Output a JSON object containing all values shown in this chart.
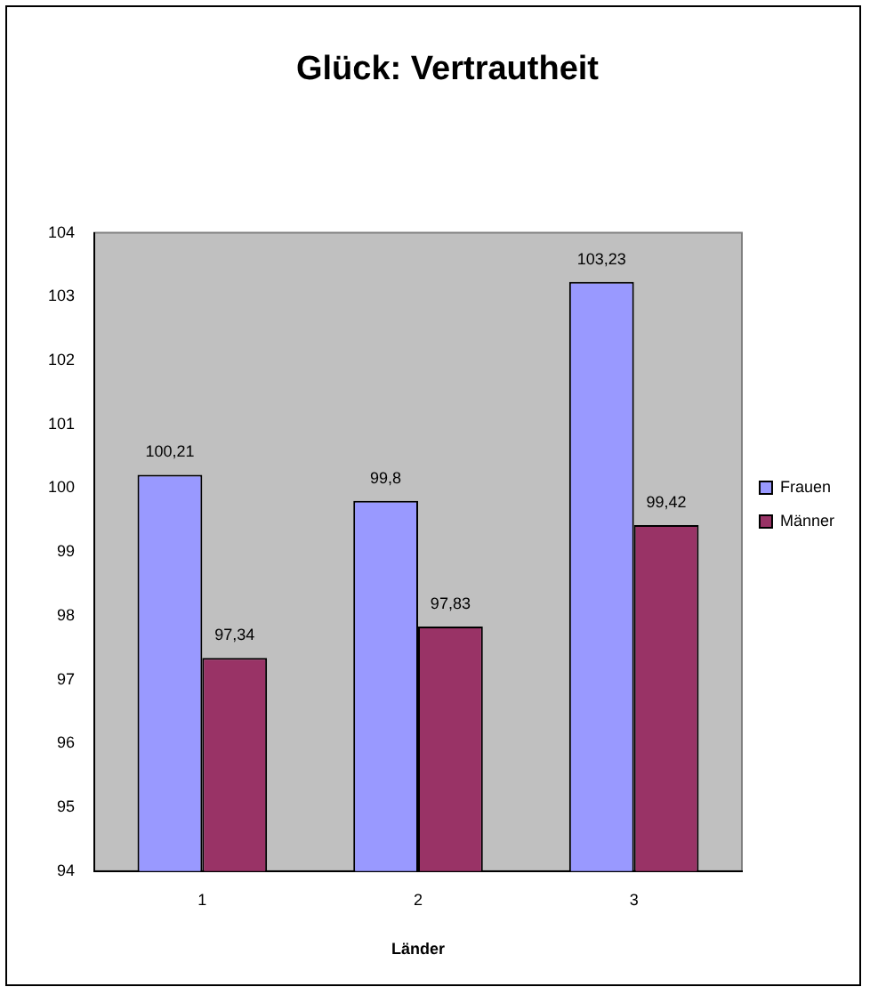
{
  "chart_data": {
    "type": "bar",
    "title": "Glück: Vertrautheit",
    "xlabel": "Länder",
    "categories": [
      "1",
      "2",
      "3"
    ],
    "series": [
      {
        "name": "Frauen",
        "color": "#9999ff",
        "values": [
          100.21,
          99.8,
          103.23
        ],
        "value_labels": [
          "100,21",
          "99,8",
          "103,23"
        ]
      },
      {
        "name": "Männer",
        "color": "#993366",
        "values": [
          97.34,
          97.83,
          99.42
        ],
        "value_labels": [
          "97,34",
          "97,83",
          "99,42"
        ]
      }
    ],
    "ylim": [
      94,
      104
    ],
    "yticks": [
      94,
      95,
      96,
      97,
      98,
      99,
      100,
      101,
      102,
      103,
      104
    ],
    "grid": false,
    "legend": "right"
  }
}
